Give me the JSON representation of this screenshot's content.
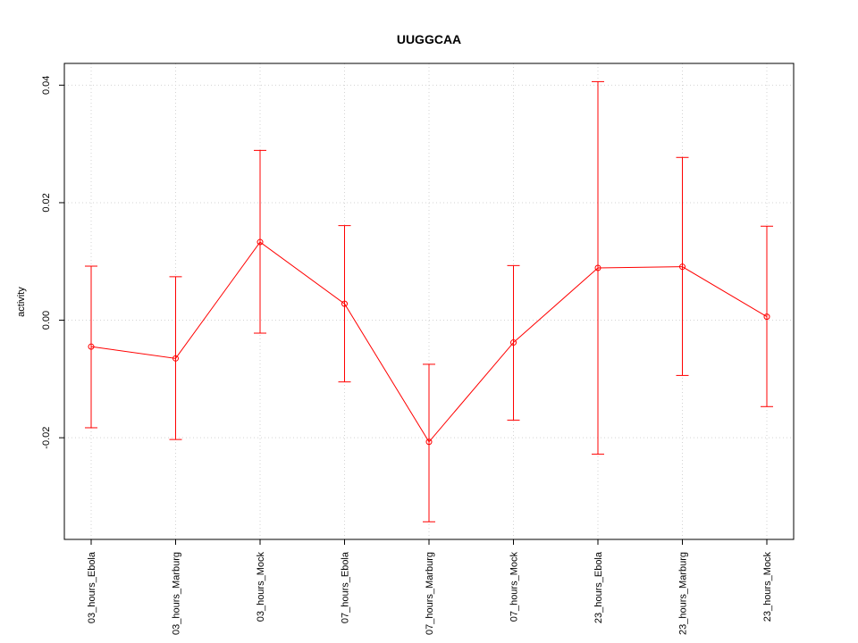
{
  "chart_data": {
    "type": "line",
    "title": "UUGGCAA",
    "xlabel": "",
    "ylabel": "activity",
    "categories": [
      "03_hours_Ebola",
      "03_hours_Marburg",
      "03_hours_Mock",
      "07_hours_Ebola",
      "07_hours_Marburg",
      "07_hours_Mock",
      "23_hours_Ebola",
      "23_hours_Marburg",
      "23_hours_Mock"
    ],
    "series": [
      {
        "values": [
          -0.0045,
          -0.0065,
          0.0133,
          0.0028,
          -0.0207,
          -0.0038,
          0.0089,
          0.0091,
          0.0006
        ],
        "error_low": [
          -0.0183,
          -0.0203,
          -0.0022,
          -0.0105,
          -0.0343,
          -0.017,
          -0.0228,
          -0.0094,
          -0.0147
        ],
        "error_high": [
          0.0092,
          0.0074,
          0.0289,
          0.0161,
          -0.0075,
          0.0093,
          0.0406,
          0.0277,
          0.016
        ],
        "color": "#ff0000"
      }
    ],
    "ylim": [
      -0.0373,
      0.0437
    ],
    "yticks": [
      -0.02,
      0.0,
      0.02,
      0.04
    ],
    "ytick_labels": [
      "-0.02",
      "0.00",
      "0.02",
      "0.04"
    ],
    "grid": true,
    "grid_color": "#d3d3d3"
  }
}
